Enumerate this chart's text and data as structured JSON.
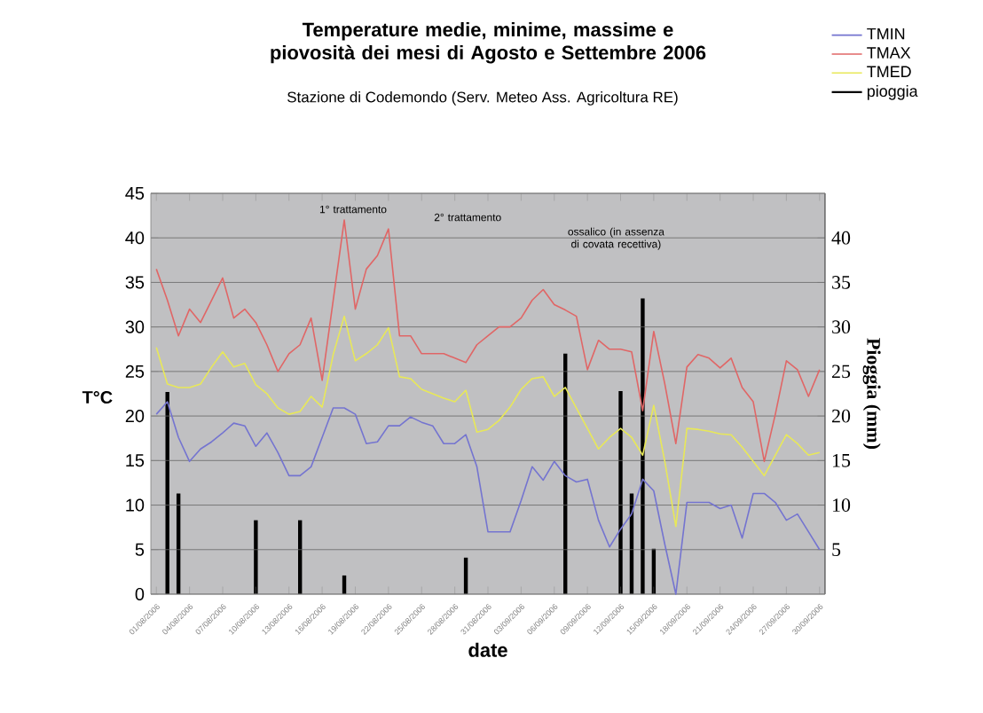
{
  "chart_data": {
    "type": "line",
    "title": "Temperature medie, minime, massime e piovosità dei mesi di Agosto e Settembre 2006",
    "subtitle": "Stazione di Codemondo (Serv. Meteo Ass. Agricoltura RE)",
    "xlabel": "date",
    "ylabel": "T°C",
    "y2label": "Pioggia (mm)",
    "xlim": [
      "2006-07-31T12:00",
      "2006-09-30T12:00"
    ],
    "xticks": [
      {
        "value": "2006-08-01",
        "label": "01/08/2006"
      },
      {
        "value": "2006-08-04",
        "label": "04/08/2006"
      },
      {
        "value": "2006-08-07",
        "label": "07/08/2006"
      },
      {
        "value": "2006-08-10",
        "label": "10/08/2006"
      },
      {
        "value": "2006-08-13",
        "label": "13/08/2006"
      },
      {
        "value": "2006-08-16",
        "label": "16/08/2006"
      },
      {
        "value": "2006-08-19",
        "label": "19/08/2006"
      },
      {
        "value": "2006-08-22",
        "label": "22/08/2006"
      },
      {
        "value": "2006-08-25",
        "label": "25/08/2006"
      },
      {
        "value": "2006-08-28",
        "label": "28/08/2006"
      },
      {
        "value": "2006-08-31",
        "label": "31/08/2006"
      },
      {
        "value": "2006-09-03",
        "label": "03/09/2006"
      },
      {
        "value": "2006-09-06",
        "label": "06/09/2006"
      },
      {
        "value": "2006-09-09",
        "label": "09/09/2006"
      },
      {
        "value": "2006-09-12",
        "label": "12/09/2006"
      },
      {
        "value": "2006-09-15",
        "label": "15/09/2006"
      },
      {
        "value": "2006-09-18",
        "label": "18/09/2006"
      },
      {
        "value": "2006-09-21",
        "label": "21/09/2006"
      },
      {
        "value": "2006-09-24",
        "label": "24/09/2006"
      },
      {
        "value": "2006-09-27",
        "label": "27/09/2006"
      },
      {
        "value": "2006-09-30",
        "label": "30/09/2006"
      }
    ],
    "ylim": [
      0,
      45
    ],
    "yticks": [
      0,
      5,
      10,
      15,
      20,
      25,
      30,
      35,
      40,
      45
    ],
    "y2lim": [
      0,
      45
    ],
    "y2ticks": [
      5,
      10,
      15,
      20,
      25,
      30,
      35,
      40
    ],
    "grid": "y",
    "legend": "top right",
    "marker": "none",
    "x": [
      "2006-08-01",
      "2006-08-02",
      "2006-08-03",
      "2006-08-04",
      "2006-08-05",
      "2006-08-06",
      "2006-08-07",
      "2006-08-08",
      "2006-08-09",
      "2006-08-10",
      "2006-08-11",
      "2006-08-12",
      "2006-08-13",
      "2006-08-14",
      "2006-08-15",
      "2006-08-16",
      "2006-08-17",
      "2006-08-18",
      "2006-08-19",
      "2006-08-20",
      "2006-08-21",
      "2006-08-22",
      "2006-08-23",
      "2006-08-24",
      "2006-08-25",
      "2006-08-26",
      "2006-08-27",
      "2006-08-28",
      "2006-08-29",
      "2006-08-30",
      "2006-08-31",
      "2006-09-01",
      "2006-09-02",
      "2006-09-03",
      "2006-09-04",
      "2006-09-05",
      "2006-09-06",
      "2006-09-07",
      "2006-09-08",
      "2006-09-09",
      "2006-09-10",
      "2006-09-11",
      "2006-09-12",
      "2006-09-13",
      "2006-09-14",
      "2006-09-15",
      "2006-09-16",
      "2006-09-17",
      "2006-09-18",
      "2006-09-19",
      "2006-09-20",
      "2006-09-21",
      "2006-09-22",
      "2006-09-23",
      "2006-09-24",
      "2006-09-25",
      "2006-09-26",
      "2006-09-27",
      "2006-09-28",
      "2006-09-29",
      "2006-09-30"
    ],
    "series": [
      {
        "name": "TMIN",
        "color": "#7474d0",
        "values": [
          20.2,
          21.6,
          17.6,
          14.9,
          16.3,
          17.1,
          18.1,
          19.2,
          18.9,
          16.6,
          18.1,
          15.9,
          13.3,
          13.3,
          14.3,
          17.6,
          20.9,
          20.9,
          20.2,
          16.9,
          17.1,
          18.9,
          18.9,
          19.9,
          19.3,
          18.9,
          16.9,
          16.9,
          17.9,
          14.3,
          7,
          7,
          7,
          10.5,
          14.3,
          12.8,
          14.9,
          13.3,
          12.6,
          12.9,
          8.3,
          5.3,
          7.3,
          9,
          12.9,
          11.6,
          5.6,
          0,
          10.3,
          10.3,
          10.3,
          9.6,
          10,
          6.3,
          11.3,
          11.3,
          10.3,
          8.3,
          9,
          7,
          5
        ]
      },
      {
        "name": "TMAX",
        "color": "#e06666",
        "values": [
          36.5,
          33,
          29,
          32,
          30.5,
          33,
          35.5,
          31,
          32,
          30.5,
          28,
          25,
          27,
          28,
          31,
          24,
          33,
          42,
          32,
          36.5,
          38,
          41,
          29,
          29,
          27,
          27,
          27,
          26.5,
          26,
          28,
          29,
          30,
          30,
          31,
          33,
          34.2,
          32.5,
          31.9,
          31.2,
          25.2,
          28.5,
          27.5,
          27.5,
          27.2,
          20.6,
          29.5,
          23.6,
          16.9,
          25.5,
          26.9,
          26.5,
          25.4,
          26.5,
          23.2,
          21.6,
          14.9,
          20.2,
          26.2,
          25.2,
          22.2,
          25.2
        ]
      },
      {
        "name": "TMED",
        "color": "#e8e858",
        "values": [
          27.7,
          23.6,
          23.2,
          23.2,
          23.6,
          25.5,
          27.2,
          25.5,
          25.9,
          23.5,
          22.5,
          20.9,
          20.2,
          20.5,
          22.2,
          21,
          26.9,
          31.2,
          26.2,
          27,
          28,
          29.9,
          24.4,
          24.2,
          23,
          22.5,
          22,
          21.6,
          22.9,
          18.2,
          18.5,
          19.5,
          21,
          23,
          24.2,
          24.4,
          22.2,
          23.2,
          20.9,
          18.6,
          16.3,
          17.6,
          18.6,
          17.6,
          15.6,
          21.2,
          14.9,
          7.6,
          18.6,
          18.5,
          18.3,
          18,
          17.9,
          16.5,
          14.9,
          13.3,
          15.6,
          17.9,
          16.9,
          15.6,
          15.9
        ]
      },
      {
        "name": "pioggia",
        "type": "bar",
        "axis": "y2",
        "color": "#000000",
        "x": [
          "2006-08-02",
          "2006-08-03",
          "2006-08-10",
          "2006-08-14",
          "2006-08-18",
          "2006-08-29",
          "2006-09-07",
          "2006-09-12",
          "2006-09-13",
          "2006-09-14",
          "2006-09-15"
        ],
        "values": [
          22.7,
          11.3,
          8.3,
          8.3,
          2.1,
          4.1,
          27,
          22.8,
          11.3,
          33.2,
          5.1
        ]
      }
    ],
    "annotations": [
      "1° trattamento",
      "2° trattamento",
      "ossalico (in assenza di covata recettiva)"
    ]
  }
}
